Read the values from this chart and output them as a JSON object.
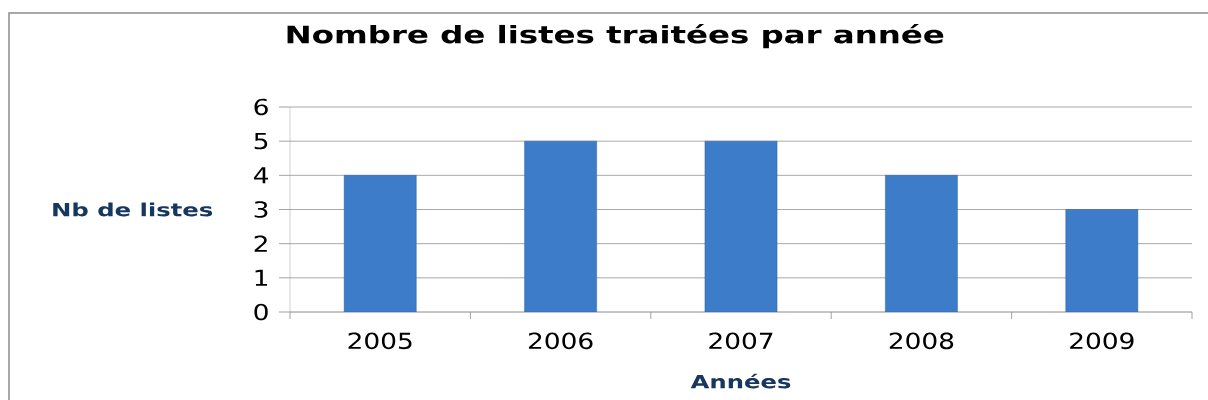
{
  "chart_data": {
    "type": "bar",
    "title": "Nombre de listes traitées par année",
    "xlabel": "Années",
    "ylabel": "Nb de listes",
    "categories": [
      "2005",
      "2006",
      "2007",
      "2008",
      "2009"
    ],
    "values": [
      4,
      5,
      5,
      4,
      3
    ],
    "color": "#3d7cc9",
    "ylim": [
      0,
      6
    ],
    "yticks": [
      0,
      1,
      2,
      3,
      4,
      5,
      6
    ],
    "grid": "y"
  }
}
